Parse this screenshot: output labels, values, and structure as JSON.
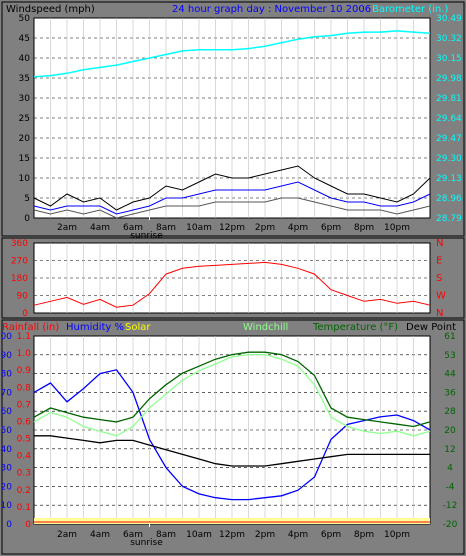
{
  "header": {
    "title": "24 hour graph day : November 10 2006"
  },
  "colors": {
    "background": "#808080",
    "plot_bg": "#ffffff",
    "panel_border": "#000000",
    "windspeed": "#000000",
    "avg_wind": "#0000ff",
    "gust_low": "#555555",
    "barometer": "#00ffff",
    "wind_dir": "#ff0000",
    "rain": "#ff0000",
    "humidity": "#0000ff",
    "solar": "#ffff00",
    "windchill": "#90ff90",
    "temperature": "#006400",
    "dew_point": "#000000",
    "sunrise_marker": "#ffffff"
  },
  "time_axis": {
    "tick_labels": [
      "2am",
      "4am",
      "6am",
      "8am",
      "10am",
      "12pm",
      "2pm",
      "4pm",
      "6pm",
      "8pm",
      "10pm"
    ],
    "sunrise_label": "sunrise"
  },
  "chart_data": [
    {
      "type": "line",
      "title": "24 hour graph day : November 10 2006",
      "left_label": "Windspeed (mph)",
      "right_label": "Barometer (in.)",
      "y_left_ticks": [
        "0",
        "5",
        "10",
        "15",
        "20",
        "25",
        "30",
        "35",
        "40",
        "45",
        "50"
      ],
      "y_right_ticks": [
        "28.79",
        "28.96",
        "29.13",
        "29.30",
        "29.47",
        "29.64",
        "29.81",
        "29.98",
        "30.15",
        "30.32",
        "30.49"
      ],
      "ylim_left": [
        0,
        50
      ],
      "ylim_right": [
        28.79,
        30.49
      ],
      "x_hours": [
        0,
        1,
        2,
        3,
        4,
        5,
        6,
        7,
        8,
        9,
        10,
        11,
        12,
        13,
        14,
        15,
        16,
        17,
        18,
        19,
        20,
        21,
        22,
        23,
        24
      ],
      "series": [
        {
          "key": "barometer",
          "axis": "right",
          "values": [
            29.99,
            30.0,
            30.02,
            30.05,
            30.07,
            30.09,
            30.12,
            30.15,
            30.18,
            30.21,
            30.22,
            30.22,
            30.22,
            30.23,
            30.25,
            30.28,
            30.31,
            30.33,
            30.34,
            30.36,
            30.37,
            30.37,
            30.38,
            30.37,
            30.36
          ]
        },
        {
          "key": "windspeed",
          "axis": "left",
          "values": [
            5,
            3,
            6,
            4,
            5,
            2,
            4,
            5,
            8,
            7,
            9,
            11,
            10,
            10,
            11,
            12,
            13,
            10,
            8,
            6,
            6,
            5,
            4,
            6,
            10
          ]
        },
        {
          "key": "avg_wind",
          "axis": "left",
          "values": [
            3,
            2,
            3,
            3,
            3,
            1,
            2,
            3,
            5,
            5,
            6,
            7,
            7,
            7,
            7,
            8,
            9,
            7,
            5,
            4,
            4,
            3,
            3,
            4,
            6
          ]
        },
        {
          "key": "gust_low",
          "axis": "left",
          "values": [
            2,
            1,
            2,
            1,
            2,
            0,
            1,
            2,
            3,
            3,
            3,
            4,
            4,
            4,
            4,
            5,
            5,
            4,
            3,
            2,
            2,
            2,
            1,
            2,
            3
          ]
        }
      ]
    },
    {
      "type": "line",
      "right_label": "N W S E N",
      "y_left_ticks": [
        "0",
        "90",
        "180",
        "270",
        "360"
      ],
      "right_ticks": [
        "N",
        "W",
        "S",
        "E",
        "N"
      ],
      "ylim": [
        0,
        360
      ],
      "x_hours": [
        0,
        1,
        2,
        3,
        4,
        5,
        6,
        7,
        8,
        9,
        10,
        11,
        12,
        13,
        14,
        15,
        16,
        17,
        18,
        19,
        20,
        21,
        22,
        23,
        24
      ],
      "series": [
        {
          "key": "wind_dir",
          "values": [
            40,
            60,
            80,
            45,
            70,
            30,
            40,
            100,
            200,
            230,
            240,
            245,
            250,
            255,
            260,
            250,
            230,
            200,
            120,
            90,
            60,
            70,
            50,
            60,
            40
          ]
        }
      ]
    },
    {
      "type": "line",
      "labels": {
        "rainfall": "Rainfall (in)",
        "humidity": "Humidity %",
        "solar": "Solar",
        "windchill": "Windchill",
        "temperature": "Temperature (°F)",
        "dew_point": "Dew Point"
      },
      "y_humidity_ticks": [
        "0",
        "10",
        "20",
        "30",
        "40",
        "50",
        "60",
        "70",
        "80",
        "90",
        "100"
      ],
      "y_rain_ticks": [
        "0",
        "0.1",
        "0.2",
        "0.3",
        "0.4",
        "0.5",
        "0.6",
        "0.7",
        "0.8",
        "0.9",
        "1.0",
        "1.1"
      ],
      "y_right_ticks": [
        "-20",
        "-12",
        "-4",
        "4",
        "12",
        "20",
        "28",
        "36",
        "44",
        "53",
        "61"
      ],
      "temp_lim": [
        -20,
        61
      ],
      "humidity_lim": [
        0,
        100
      ],
      "x_hours": [
        0,
        1,
        2,
        3,
        4,
        5,
        6,
        7,
        8,
        9,
        10,
        11,
        12,
        13,
        14,
        15,
        16,
        17,
        18,
        19,
        20,
        21,
        22,
        23,
        24
      ],
      "series": [
        {
          "key": "humidity",
          "axis": "humidity",
          "values": [
            70,
            75,
            65,
            72,
            80,
            82,
            70,
            45,
            30,
            20,
            16,
            14,
            13,
            13,
            14,
            15,
            18,
            25,
            45,
            53,
            55,
            57,
            58,
            55,
            50
          ]
        },
        {
          "key": "temperature",
          "axis": "temp",
          "values": [
            26,
            30,
            28,
            26,
            25,
            24,
            26,
            34,
            40,
            45,
            48,
            51,
            53,
            54,
            54,
            53,
            50,
            44,
            30,
            26,
            25,
            24,
            23,
            22,
            24
          ]
        },
        {
          "key": "windchill",
          "axis": "temp",
          "values": [
            24,
            28,
            26,
            22,
            20,
            18,
            22,
            30,
            36,
            42,
            46,
            49,
            52,
            53,
            53,
            51,
            48,
            40,
            26,
            22,
            20,
            19,
            20,
            18,
            20
          ]
        },
        {
          "key": "dew_point",
          "axis": "temp",
          "values": [
            18,
            18,
            17,
            16,
            15,
            16,
            16,
            14,
            12,
            10,
            8,
            6,
            5,
            5,
            5,
            6,
            7,
            8,
            9,
            10,
            10,
            10,
            10,
            10,
            10
          ]
        }
      ]
    }
  ]
}
